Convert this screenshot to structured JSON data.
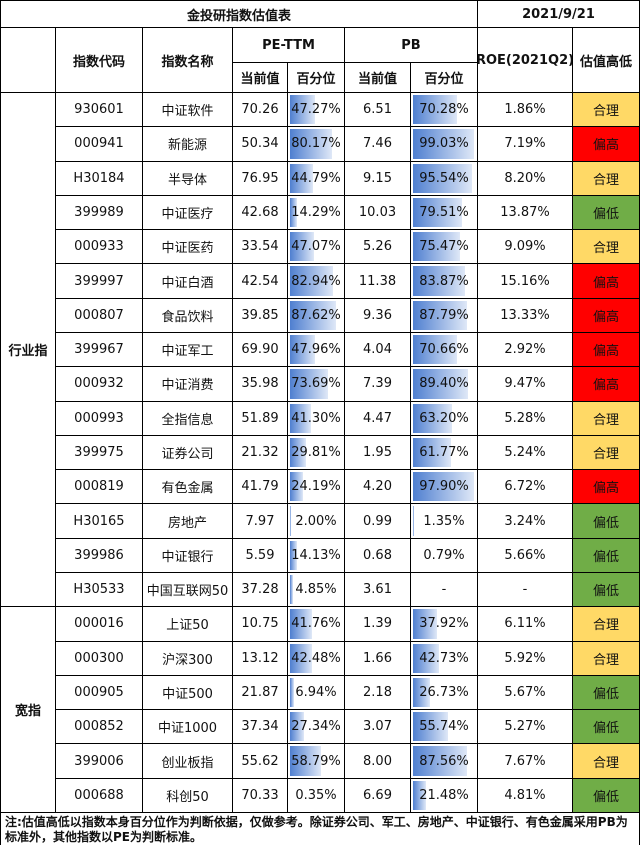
{
  "header": {
    "title": "金投研指数估值表",
    "date": "2021/9/21"
  },
  "table": {
    "columns": [
      "指数代码",
      "指数名称",
      "PE-TTM",
      "PB",
      "ROE(2021Q2)",
      "估值高低"
    ],
    "subcolumns": [
      "当前值",
      "百分位",
      "当前值",
      "百分位"
    ],
    "groups": [
      {
        "label": "行业指",
        "rows": [
          [
            "930601",
            "中证软件",
            "70.26",
            "47.27%",
            "6.51",
            "70.28%",
            "1.86%",
            "合理"
          ],
          [
            "000941",
            "新能源",
            "50.34",
            "80.17%",
            "7.46",
            "99.03%",
            "7.19%",
            "偏高"
          ],
          [
            "H30184",
            "半导体",
            "76.95",
            "44.79%",
            "9.15",
            "95.54%",
            "8.20%",
            "合理"
          ],
          [
            "399989",
            "中证医疗",
            "42.68",
            "14.29%",
            "10.03",
            "79.51%",
            "13.87%",
            "偏低"
          ],
          [
            "000933",
            "中证医药",
            "33.54",
            "47.07%",
            "5.26",
            "75.47%",
            "9.09%",
            "合理"
          ],
          [
            "399997",
            "中证白酒",
            "42.54",
            "82.94%",
            "11.38",
            "83.87%",
            "15.16%",
            "偏高"
          ],
          [
            "000807",
            "食品饮料",
            "39.85",
            "87.62%",
            "9.36",
            "87.79%",
            "13.33%",
            "偏高"
          ],
          [
            "399967",
            "中证军工",
            "69.90",
            "47.96%",
            "4.04",
            "70.66%",
            "2.92%",
            "偏高"
          ],
          [
            "000932",
            "中证消费",
            "35.98",
            "73.69%",
            "7.39",
            "89.40%",
            "9.47%",
            "偏高"
          ],
          [
            "000993",
            "全指信息",
            "51.89",
            "41.30%",
            "4.47",
            "63.20%",
            "5.28%",
            "合理"
          ],
          [
            "399975",
            "证券公司",
            "21.32",
            "29.81%",
            "1.95",
            "61.77%",
            "5.24%",
            "合理"
          ],
          [
            "000819",
            "有色金属",
            "41.79",
            "24.19%",
            "4.20",
            "97.90%",
            "6.72%",
            "偏高"
          ],
          [
            "H30165",
            "房地产",
            "7.97",
            "2.00%",
            "0.99",
            "1.35%",
            "3.24%",
            "偏低"
          ],
          [
            "399986",
            "中证银行",
            "5.59",
            "14.13%",
            "0.68",
            "0.79%",
            "5.66%",
            "偏低"
          ],
          [
            "H30533",
            "中国互联网50",
            "37.28",
            "4.85%",
            "3.61",
            "-",
            "-",
            "偏低"
          ]
        ]
      },
      {
        "label": "宽指",
        "rows": [
          [
            "000016",
            "上证50",
            "10.75",
            "41.76%",
            "1.39",
            "37.92%",
            "6.11%",
            "合理"
          ],
          [
            "000300",
            "沪深300",
            "13.12",
            "42.48%",
            "1.66",
            "42.73%",
            "5.92%",
            "合理"
          ],
          [
            "000905",
            "中证500",
            "21.87",
            "6.94%",
            "2.18",
            "26.73%",
            "5.67%",
            "偏低"
          ],
          [
            "000852",
            "中证1000",
            "37.34",
            "27.34%",
            "3.07",
            "55.74%",
            "5.27%",
            "偏低"
          ],
          [
            "399006",
            "创业板指",
            "55.62",
            "58.79%",
            "8.00",
            "87.56%",
            "7.67%",
            "合理"
          ],
          [
            "000688",
            "科创50",
            "70.33",
            "0.35%",
            "6.69",
            "21.48%",
            "4.81%",
            "偏低"
          ]
        ]
      }
    ]
  },
  "level_colors": {
    "合理": "#ffd966",
    "偏高": "#ff0000",
    "偏低": "#70ad47"
  },
  "footnote": "注:估值高低以指数本身百分位作为判断依据，仅做参考。除证券公司、军工、房地产、中证银行、有色金属采用PB为标准外，其他指数以PE为判断标准。"
}
